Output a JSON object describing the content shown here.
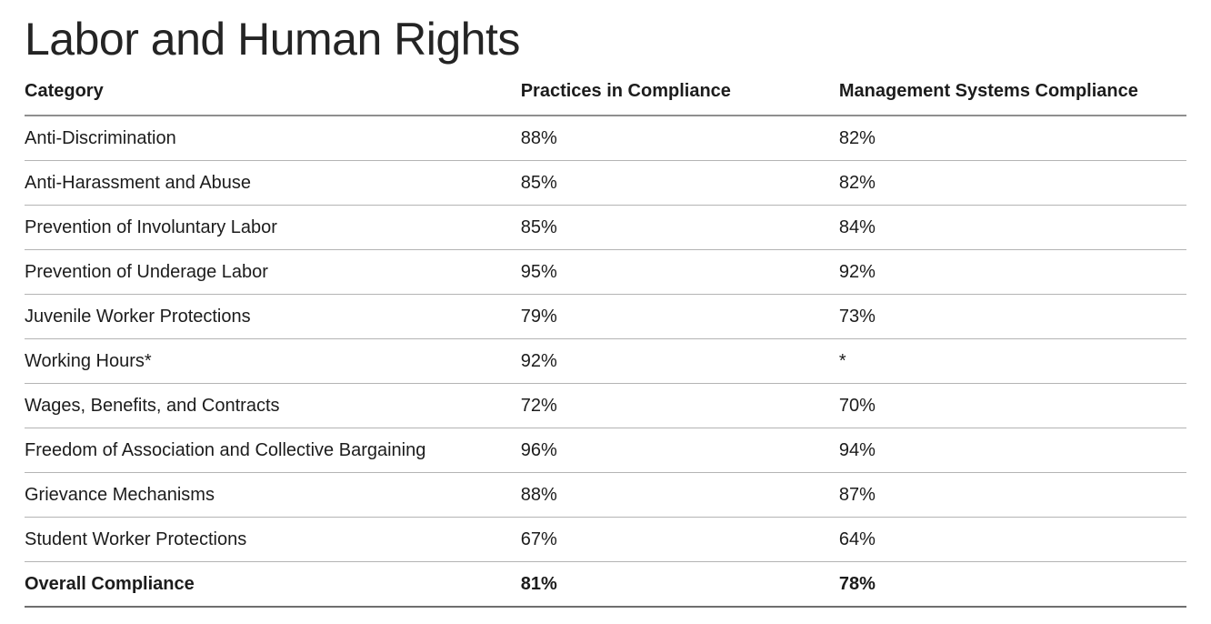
{
  "page": {
    "title": "Labor and Human Rights"
  },
  "colors": {
    "text": "#1c1c1c",
    "row_rule": "#b4b4b4",
    "header_rule": "#8f8f8f",
    "bottom_rule": "#6f6f6f",
    "background": "#ffffff"
  },
  "table": {
    "columns": [
      {
        "key": "category",
        "label": "Category"
      },
      {
        "key": "practices",
        "label": "Practices in Compliance"
      },
      {
        "key": "management",
        "label": "Management Systems Compliance"
      }
    ],
    "rows": [
      {
        "category": "Anti-Discrimination",
        "practices": "88%",
        "management": "82%",
        "emphasis": false
      },
      {
        "category": "Anti-Harassment and Abuse",
        "practices": "85%",
        "management": "82%",
        "emphasis": false
      },
      {
        "category": "Prevention of Involuntary Labor",
        "practices": "85%",
        "management": "84%",
        "emphasis": false
      },
      {
        "category": "Prevention of Underage Labor",
        "practices": "95%",
        "management": "92%",
        "emphasis": false
      },
      {
        "category": "Juvenile Worker Protections",
        "practices": "79%",
        "management": "73%",
        "emphasis": false
      },
      {
        "category": "Working Hours*",
        "practices": "92%",
        "management": "*",
        "emphasis": false
      },
      {
        "category": "Wages, Benefits, and Contracts",
        "practices": "72%",
        "management": "70%",
        "emphasis": false
      },
      {
        "category": "Freedom of Association and Collective Bargaining",
        "practices": "96%",
        "management": "94%",
        "emphasis": false
      },
      {
        "category": "Grievance Mechanisms",
        "practices": "88%",
        "management": "87%",
        "emphasis": false
      },
      {
        "category": "Student Worker Protections",
        "practices": "67%",
        "management": "64%",
        "emphasis": false
      },
      {
        "category": "Overall Compliance",
        "practices": "81%",
        "management": "78%",
        "emphasis": true
      }
    ]
  },
  "chart_data": {
    "type": "table",
    "title": "Labor and Human Rights",
    "columns": [
      "Category",
      "Practices in Compliance",
      "Management Systems Compliance"
    ],
    "rows": [
      [
        "Anti-Discrimination",
        "88%",
        "82%"
      ],
      [
        "Anti-Harassment and Abuse",
        "85%",
        "82%"
      ],
      [
        "Prevention of Involuntary Labor",
        "85%",
        "84%"
      ],
      [
        "Prevention of Underage Labor",
        "95%",
        "92%"
      ],
      [
        "Juvenile Worker Protections",
        "79%",
        "73%"
      ],
      [
        "Working Hours*",
        "92%",
        "*"
      ],
      [
        "Wages, Benefits, and Contracts",
        "72%",
        "70%"
      ],
      [
        "Freedom of Association and Collective Bargaining",
        "96%",
        "94%"
      ],
      [
        "Grievance Mechanisms",
        "88%",
        "87%"
      ],
      [
        "Student Worker Protections",
        "67%",
        "64%"
      ],
      [
        "Overall Compliance",
        "81%",
        "78%"
      ]
    ]
  }
}
